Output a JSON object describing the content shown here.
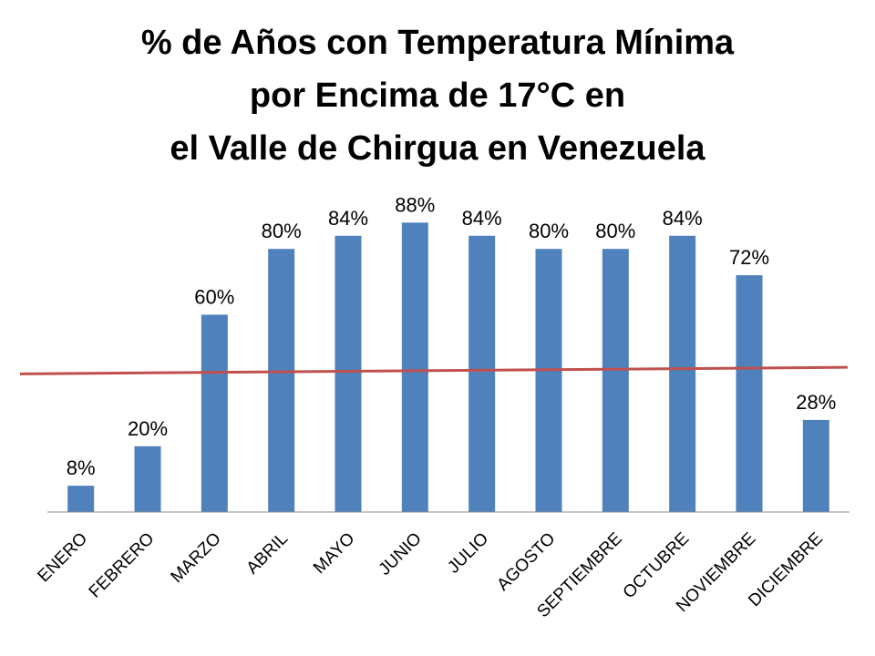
{
  "chart_data": {
    "type": "bar",
    "title_lines": [
      "% de Años con Temperatura Mínima",
      "por Encima de 17°C en",
      "el Valle de Chirgua en Venezuela"
    ],
    "categories": [
      "ENERO",
      "FEBRERO",
      "MARZO",
      "ABRIL",
      "MAYO",
      "JUNIO",
      "JULIO",
      "AGOSTO",
      "SEPTIEMBRE",
      "OCTUBRE",
      "NOVIEMBRE",
      "DICIEMBRE"
    ],
    "values": [
      8,
      20,
      60,
      80,
      84,
      88,
      84,
      80,
      80,
      84,
      72,
      28
    ],
    "data_labels": [
      "8%",
      "20%",
      "60%",
      "80%",
      "84%",
      "88%",
      "84%",
      "80%",
      "80%",
      "84%",
      "72%",
      "28%"
    ],
    "value_unit": "%",
    "ylim": [
      0,
      100
    ],
    "grid": false,
    "y_axis_visible": false,
    "trendline": {
      "start": 42,
      "end": 44,
      "color": "#c0504d"
    },
    "bar_color": "#4f81bd"
  }
}
